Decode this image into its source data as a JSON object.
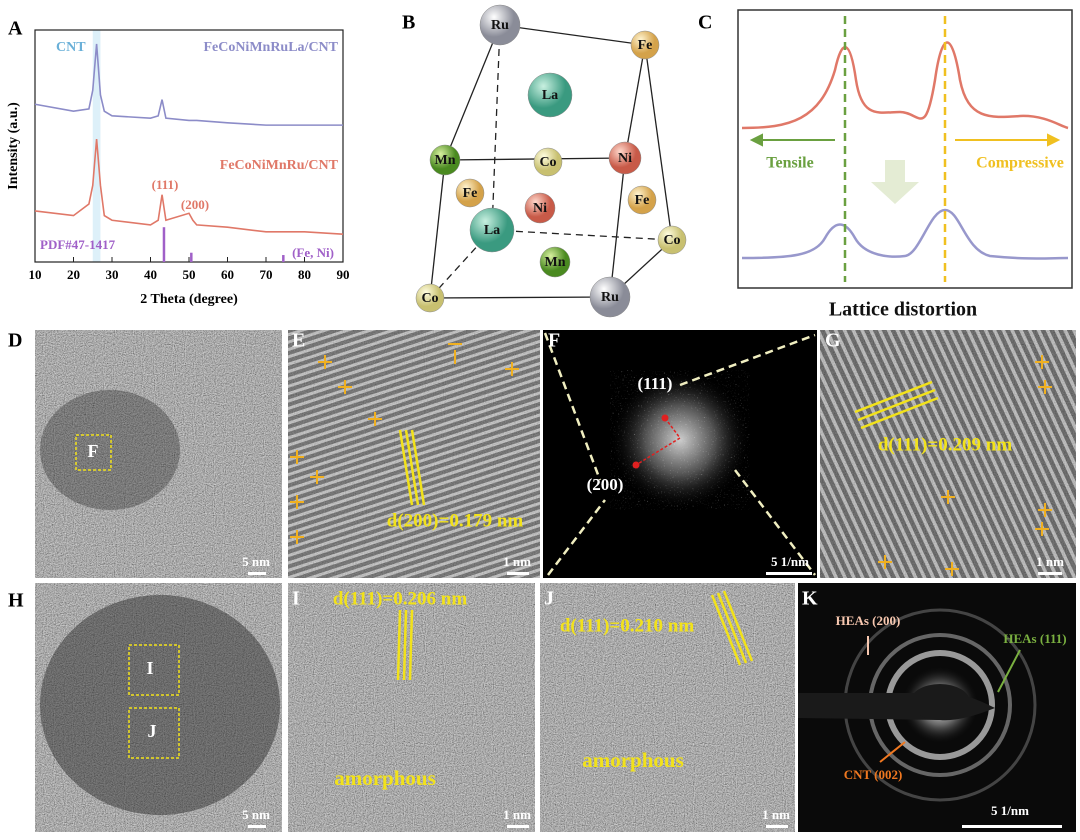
{
  "chart_data": {
    "type": "line",
    "label": "A",
    "xlabel": "2 Theta (degree)",
    "ylabel": "Intensity (a.u.)",
    "x": [
      10,
      20,
      24,
      25,
      26,
      27,
      28,
      30,
      40,
      42,
      43,
      44,
      50,
      51,
      52,
      60,
      70,
      80,
      90
    ],
    "series": [
      {
        "name": "FeCoNiMnRuLa/CNT",
        "color": "#8c8cc8",
        "values": [
          68,
          65,
          66,
          74,
          94,
          72,
          65,
          63,
          62,
          63,
          70,
          62,
          61,
          61,
          61,
          60,
          59,
          59,
          59
        ]
      },
      {
        "name": "FeCoNiMnRu/CNT",
        "color": "#e07868",
        "values": [
          22,
          20,
          25,
          33,
          53,
          33,
          20,
          18,
          16,
          18,
          29,
          18,
          21,
          18,
          16,
          15,
          13,
          13,
          12
        ]
      }
    ],
    "reference": {
      "name": "PDF#47-1417",
      "color": "#a060c8",
      "x": [
        43.5,
        50.6,
        74.5
      ],
      "values": [
        15,
        4,
        3
      ]
    },
    "annotations": {
      "cnt": "CNT",
      "p111": "(111)",
      "p200": "(200)",
      "feni": "(Fe, Ni)"
    },
    "xlim": [
      10,
      90
    ],
    "xticks": [
      10,
      20,
      30,
      40,
      50,
      60,
      70,
      80,
      90
    ],
    "ylim": [
      0,
      100
    ]
  },
  "panels": {
    "B": {
      "label": "B",
      "atoms": [
        "Ru",
        "Fe",
        "La",
        "Mn",
        "Co",
        "Ni",
        "Fe",
        "Ni",
        "Fe",
        "La",
        "Co",
        "Mn",
        "Co",
        "Ru"
      ]
    },
    "C": {
      "label": "C",
      "tensile": "Tensile",
      "compressive": "Compressive",
      "caption": "Lattice distortion"
    },
    "D": {
      "label": "D",
      "box": "F",
      "scale": "5 nm"
    },
    "E": {
      "label": "E",
      "spacing": "d(200)=0.179 nm",
      "scale": "1 nm"
    },
    "F": {
      "label": "F",
      "spot1": "(111)",
      "spot2": "(200)",
      "scale": "5 1/nm"
    },
    "G": {
      "label": "G",
      "spacing": "d(111)=0.209 nm",
      "scale": "1 nm"
    },
    "H": {
      "label": "H",
      "box1": "I",
      "box2": "J",
      "scale": "5 nm"
    },
    "I": {
      "label": "I",
      "spacing": "d(111)=0.206 nm",
      "note": "amorphous",
      "scale": "1 nm"
    },
    "J": {
      "label": "J",
      "spacing": "d(111)=0.210 nm",
      "note": "amorphous",
      "scale": "1 nm"
    },
    "K": {
      "label": "K",
      "ring1": "HEAs (200)",
      "ring2": "HEAs (111)",
      "ring3": "CNT (002)",
      "scale": "5 1/nm"
    }
  }
}
